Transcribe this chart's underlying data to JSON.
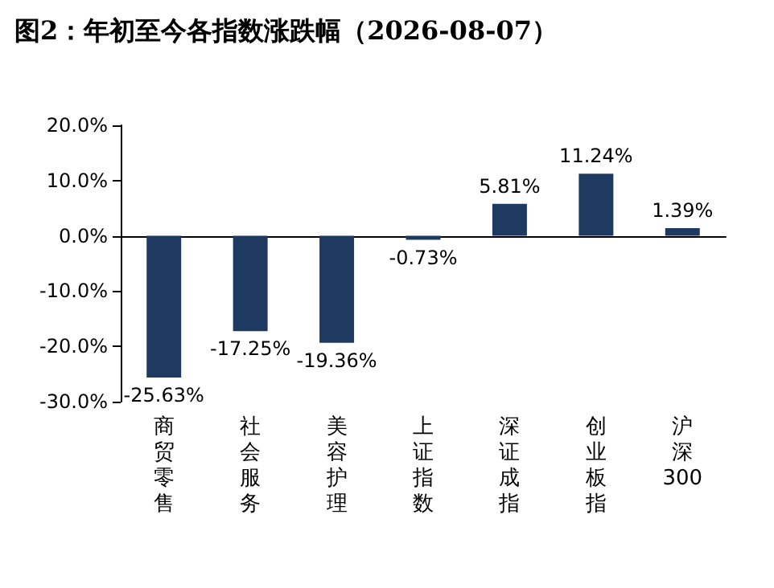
{
  "chart_data": {
    "type": "bar",
    "title": "图2：年初至今各指数涨跌幅（2026-08-07）",
    "categories": [
      "商贸零售",
      "社会服务",
      "美容护理",
      "上证指数",
      "深证成指",
      "创业板指",
      "沪深300"
    ],
    "values": [
      -25.63,
      -17.25,
      -19.36,
      -0.73,
      5.81,
      11.24,
      1.39
    ],
    "value_labels": [
      "-25.63%",
      "-17.25%",
      "-19.36%",
      "-0.73%",
      "5.81%",
      "11.24%",
      "1.39%"
    ],
    "color": "#1f3a60",
    "ylim": [
      -30,
      20
    ],
    "yticks": [
      {
        "value": -30,
        "label": "-30.0%"
      },
      {
        "value": -20,
        "label": "-20.0%"
      },
      {
        "value": -10,
        "label": "-10.0%"
      },
      {
        "value": 0,
        "label": "0.0%"
      },
      {
        "value": 10,
        "label": "10.0%"
      },
      {
        "value": 20,
        "label": "20.0%"
      }
    ]
  }
}
